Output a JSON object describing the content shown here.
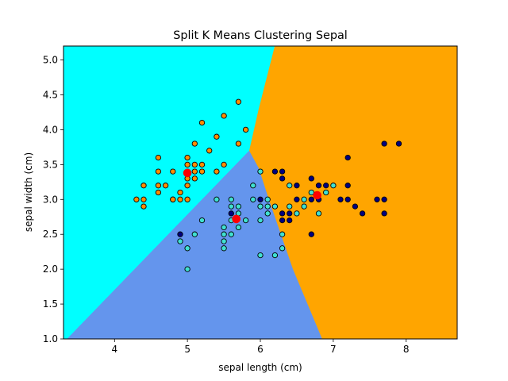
{
  "chart_data": {
    "type": "scatter",
    "title": "Split K Means Clustering Sepal",
    "xlabel": "sepal length (cm)",
    "ylabel": "sepal width (cm)",
    "xlim": [
      3.3,
      8.7
    ],
    "ylim": [
      1.0,
      5.2
    ],
    "xticks": [
      "4",
      "5",
      "6",
      "7",
      "8"
    ],
    "yticks": [
      "1.0",
      "1.5",
      "2.0",
      "2.5",
      "3.0",
      "3.5",
      "4.0",
      "4.5",
      "5.0"
    ],
    "grid": false,
    "regions": [
      {
        "color": "#00ffff",
        "polygon": [
          [
            3.3,
            1.0
          ],
          [
            3.3,
            5.2
          ],
          [
            6.2,
            5.2
          ],
          [
            5.98,
            4.3
          ],
          [
            5.85,
            3.7
          ],
          [
            3.35,
            1.0
          ]
        ]
      },
      {
        "color": "#6495ed",
        "polygon": [
          [
            3.35,
            1.0
          ],
          [
            5.85,
            3.7
          ],
          [
            5.98,
            3.45
          ],
          [
            6.12,
            3.0
          ],
          [
            6.45,
            2.0
          ],
          [
            6.85,
            1.0
          ]
        ]
      },
      {
        "color": "#ffa500",
        "polygon": [
          [
            6.85,
            1.0
          ],
          [
            6.45,
            2.0
          ],
          [
            6.12,
            3.0
          ],
          [
            5.98,
            3.45
          ],
          [
            5.85,
            3.7
          ],
          [
            5.98,
            4.3
          ],
          [
            6.2,
            5.2
          ],
          [
            8.7,
            5.2
          ],
          [
            8.7,
            1.0
          ]
        ]
      }
    ],
    "series": [
      {
        "color": "#ff8c00",
        "points": [
          [
            4.3,
            3.0
          ],
          [
            4.4,
            3.2
          ],
          [
            4.4,
            3.0
          ],
          [
            4.4,
            2.9
          ],
          [
            4.6,
            3.6
          ],
          [
            4.6,
            3.4
          ],
          [
            4.6,
            3.2
          ],
          [
            4.6,
            3.1
          ],
          [
            4.7,
            3.2
          ],
          [
            4.8,
            3.4
          ],
          [
            4.8,
            3.0
          ],
          [
            4.8,
            3.0
          ],
          [
            4.9,
            3.1
          ],
          [
            4.9,
            3.0
          ],
          [
            5.0,
            3.6
          ],
          [
            5.0,
            3.5
          ],
          [
            5.0,
            3.4
          ],
          [
            5.0,
            3.3
          ],
          [
            5.0,
            3.2
          ],
          [
            5.0,
            3.0
          ],
          [
            5.1,
            3.8
          ],
          [
            5.1,
            3.5
          ],
          [
            5.1,
            3.4
          ],
          [
            5.1,
            3.3
          ],
          [
            5.2,
            4.1
          ],
          [
            5.2,
            3.5
          ],
          [
            5.2,
            3.4
          ],
          [
            5.3,
            3.7
          ],
          [
            5.4,
            3.9
          ],
          [
            5.4,
            3.4
          ],
          [
            5.5,
            4.2
          ],
          [
            5.5,
            3.5
          ],
          [
            5.7,
            4.4
          ],
          [
            5.7,
            3.8
          ],
          [
            5.8,
            4.0
          ]
        ]
      },
      {
        "color": "#40e0d0",
        "points": [
          [
            4.9,
            2.4
          ],
          [
            5.0,
            2.3
          ],
          [
            5.0,
            2.0
          ],
          [
            5.1,
            2.5
          ],
          [
            5.2,
            2.7
          ],
          [
            5.4,
            3.0
          ],
          [
            5.5,
            2.6
          ],
          [
            5.5,
            2.5
          ],
          [
            5.5,
            2.4
          ],
          [
            5.5,
            2.3
          ],
          [
            5.6,
            3.0
          ],
          [
            5.6,
            2.9
          ],
          [
            5.6,
            2.7
          ],
          [
            5.6,
            2.5
          ],
          [
            5.7,
            2.9
          ],
          [
            5.7,
            2.8
          ],
          [
            5.7,
            2.6
          ],
          [
            5.8,
            2.7
          ],
          [
            5.9,
            3.2
          ],
          [
            5.9,
            3.0
          ],
          [
            6.0,
            3.4
          ],
          [
            6.0,
            2.9
          ],
          [
            6.0,
            2.7
          ],
          [
            6.0,
            2.2
          ],
          [
            6.1,
            3.0
          ],
          [
            6.1,
            2.9
          ],
          [
            6.1,
            2.8
          ],
          [
            6.2,
            2.9
          ],
          [
            6.2,
            2.2
          ],
          [
            6.3,
            2.5
          ],
          [
            6.3,
            2.3
          ],
          [
            6.4,
            3.2
          ],
          [
            6.4,
            2.9
          ],
          [
            6.5,
            2.8
          ],
          [
            6.6,
            3.0
          ],
          [
            6.6,
            2.9
          ],
          [
            6.7,
            3.1
          ],
          [
            6.8,
            2.8
          ],
          [
            6.9,
            3.1
          ],
          [
            7.0,
            3.2
          ]
        ]
      },
      {
        "color": "#000080",
        "points": [
          [
            4.9,
            2.5
          ],
          [
            5.6,
            2.8
          ],
          [
            6.0,
            3.0
          ],
          [
            6.2,
            3.4
          ],
          [
            6.3,
            3.4
          ],
          [
            6.3,
            3.3
          ],
          [
            6.3,
            2.8
          ],
          [
            6.3,
            2.7
          ],
          [
            6.4,
            2.8
          ],
          [
            6.4,
            2.7
          ],
          [
            6.5,
            3.2
          ],
          [
            6.5,
            3.0
          ],
          [
            6.7,
            3.3
          ],
          [
            6.7,
            3.0
          ],
          [
            6.7,
            2.5
          ],
          [
            6.8,
            3.2
          ],
          [
            6.8,
            3.0
          ],
          [
            6.9,
            3.2
          ],
          [
            7.1,
            3.0
          ],
          [
            7.2,
            3.6
          ],
          [
            7.2,
            3.2
          ],
          [
            7.2,
            3.0
          ],
          [
            7.3,
            2.9
          ],
          [
            7.4,
            2.8
          ],
          [
            7.6,
            3.0
          ],
          [
            7.7,
            3.8
          ],
          [
            7.7,
            3.0
          ],
          [
            7.7,
            2.8
          ],
          [
            7.9,
            3.8
          ]
        ]
      }
    ],
    "centroids": {
      "color": "#ff0000",
      "points": [
        [
          5.0,
          3.38
        ],
        [
          5.67,
          2.72
        ],
        [
          6.78,
          3.06
        ]
      ]
    }
  }
}
